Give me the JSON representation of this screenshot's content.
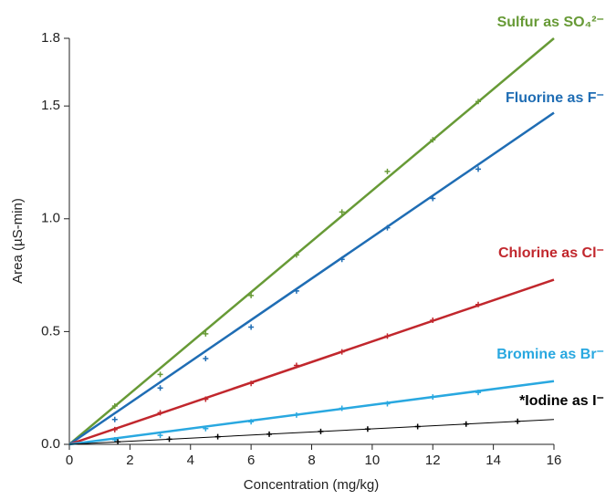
{
  "chart_data": {
    "type": "scatter",
    "x_label": "Concentration (mg/kg)",
    "y_label": "Area (µS-min)",
    "xlim": [
      0,
      16
    ],
    "xticks": [
      0,
      2,
      4,
      6,
      8,
      10,
      12,
      14,
      16
    ],
    "ylim": [
      0,
      1.8
    ],
    "yticks": [
      {
        "value": 0,
        "label": "0.0"
      },
      0.5,
      {
        "value": 1,
        "label": "1.0"
      },
      1.5,
      1.8
    ],
    "series": [
      {
        "name": "Sulfur as SO₄²⁻",
        "color": "#679a36",
        "x": [
          1.5,
          3,
          4.5,
          6,
          7.5,
          9,
          10.5,
          12,
          13.5
        ],
        "values": [
          0.17,
          0.31,
          0.49,
          0.66,
          0.84,
          1.03,
          1.21,
          1.35,
          1.52
        ],
        "fit": {
          "x": [
            0,
            16
          ],
          "values": [
            0,
            1.8
          ]
        }
      },
      {
        "name": "Fluorine as F⁻",
        "color": "#1f6db4",
        "x": [
          1.5,
          3,
          4.5,
          6,
          7.5,
          9,
          10.5,
          12,
          13.5
        ],
        "values": [
          0.11,
          0.25,
          0.38,
          0.52,
          0.68,
          0.82,
          0.96,
          1.09,
          1.22
        ],
        "fit": {
          "x": [
            0,
            16
          ],
          "values": [
            0,
            1.47
          ]
        }
      },
      {
        "name": "Chlorine as Cl⁻",
        "color": "#c1272d",
        "x": [
          1.5,
          3,
          4.5,
          6,
          7.5,
          9,
          10.5,
          12,
          13.5
        ],
        "values": [
          0.065,
          0.14,
          0.2,
          0.27,
          0.35,
          0.41,
          0.48,
          0.55,
          0.62
        ],
        "fit": {
          "x": [
            0,
            16
          ],
          "values": [
            0,
            0.73
          ]
        }
      },
      {
        "name": "Bromine as Br⁻",
        "color": "#29a8e0",
        "x": [
          1.5,
          3,
          4.5,
          6,
          7.5,
          9,
          10.5,
          12,
          13.5
        ],
        "values": [
          0.02,
          0.04,
          0.07,
          0.1,
          0.13,
          0.16,
          0.18,
          0.21,
          0.23
        ],
        "fit": {
          "x": [
            0,
            16
          ],
          "values": [
            0,
            0.28
          ]
        }
      },
      {
        "name": "*Iodine as I⁻",
        "color": "#000000",
        "x": [
          1.6,
          3.3,
          4.9,
          6.6,
          8.3,
          9.85,
          11.5,
          13.1,
          14.8
        ],
        "values": [
          0.011,
          0.023,
          0.034,
          0.045,
          0.057,
          0.068,
          0.079,
          0.09,
          0.102
        ],
        "fit": {
          "x": [
            0,
            16
          ],
          "values": [
            0,
            0.11
          ]
        }
      }
    ]
  }
}
